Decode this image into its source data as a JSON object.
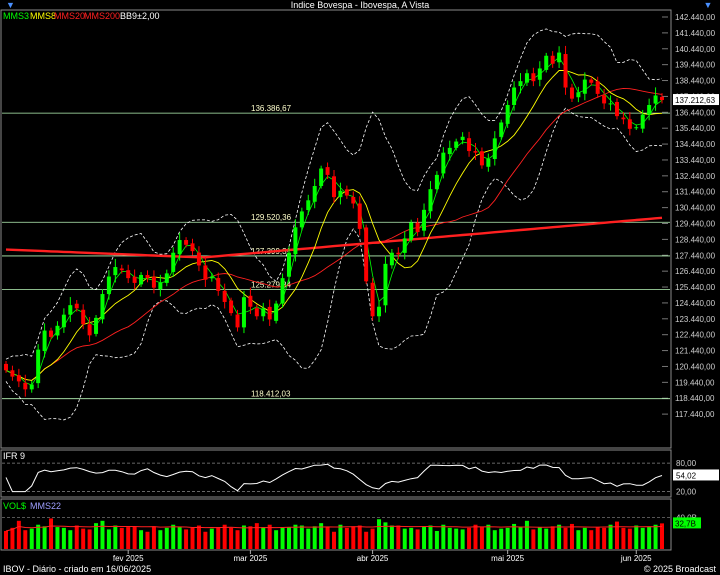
{
  "window": {
    "title": "Indice Bovespa - Ibovespa, A Vista"
  },
  "legend": [
    {
      "label": "MMS3",
      "color": "#00ff00"
    },
    {
      "label": "MMS8",
      "color": "#ffff00"
    },
    {
      "label": "MMS20",
      "color": "#ff2020"
    },
    {
      "label": "MMS200",
      "color": "#ff2020"
    },
    {
      "label": "BB9±2,00",
      "color": "#ffffff"
    }
  ],
  "footer": {
    "left": "IBOV - Diário - criado em 16/06/2025",
    "right": "© 2025 Broadcast"
  },
  "colors": {
    "up": "#00ff00",
    "down": "#ff0000",
    "ma_short": "#00ff00",
    "ma_mid": "#ffff00",
    "ma_long": "#ff2020",
    "bands": "#ffffff",
    "hline": "#b9f7b9"
  },
  "chart_data": [
    {
      "type": "candlestick",
      "title": "Indice Bovespa - Ibovespa, A Vista",
      "ylim": [
        116440,
        142440
      ],
      "yticks": [
        "142.440,00",
        "141.440,00",
        "140.440,00",
        "139.440,00",
        "138.440,00",
        "137.440,00",
        "136.440,00",
        "135.440,00",
        "134.440,00",
        "133.440,00",
        "132.440,00",
        "131.440,00",
        "130.440,00",
        "129.440,00",
        "128.440,00",
        "127.440,00",
        "126.440,00",
        "125.440,00",
        "124.440,00",
        "123.440,00",
        "122.440,00",
        "121.440,00",
        "120.440,00",
        "119.440,00",
        "118.440,00",
        "117.440,00"
      ],
      "last_price": 137212.63,
      "last_price_label": "137.212,63",
      "x_labels": [
        {
          "label": "fev 2025",
          "index": 19
        },
        {
          "label": "mar 2025",
          "index": 38
        },
        {
          "label": "abr 2025",
          "index": 57
        },
        {
          "label": "mai 2025",
          "index": 78
        },
        {
          "label": "jun 2025",
          "index": 98
        }
      ],
      "hlines": [
        {
          "value": 136386.67,
          "label": "136.386,67"
        },
        {
          "value": 129520.36,
          "label": "129.520,36"
        },
        {
          "value": 127399.31,
          "label": "127.399,31"
        },
        {
          "value": 125279.34,
          "label": "125.279,34"
        },
        {
          "value": 118412.03,
          "label": "118.412,03"
        }
      ],
      "close": [
        120200,
        119800,
        119500,
        119000,
        119300,
        121500,
        122700,
        122300,
        123000,
        123700,
        124300,
        124100,
        123100,
        122400,
        123500,
        125000,
        126100,
        126700,
        126500,
        126000,
        125700,
        126200,
        126000,
        125400,
        125700,
        126300,
        127600,
        128400,
        128100,
        127700,
        126800,
        125900,
        126100,
        125200,
        124500,
        123800,
        122900,
        124800,
        124200,
        123600,
        124100,
        123400,
        124400,
        126000,
        127600,
        129200,
        130200,
        130900,
        131800,
        132900,
        132500,
        131100,
        131500,
        131200,
        130700,
        129100,
        125800,
        123600,
        124200,
        126900,
        127600,
        127500,
        128500,
        129500,
        128900,
        130300,
        131600,
        132500,
        133900,
        134200,
        134600,
        134900,
        134000,
        133900,
        133100,
        133500,
        134800,
        135800,
        136900,
        138000,
        138400,
        138900,
        138400,
        139200,
        140000,
        139500,
        140200,
        138000,
        137300,
        137700,
        138500,
        138300,
        137600,
        137000,
        137000,
        136200,
        136000,
        135400,
        135500,
        136300,
        136900,
        137500,
        137212.63
      ],
      "ma_short": "MMS3",
      "ma_mid": "MMS8",
      "ma_long": "MMS20",
      "ma_200": {
        "name": "MMS200",
        "start": 127800,
        "low": 127300,
        "end": 129800
      },
      "bollinger": {
        "name": "BB9±2,00",
        "period": 9,
        "k": 2
      }
    },
    {
      "type": "line",
      "title": "IFR 9",
      "ylim": [
        15,
        95
      ],
      "yticks": [
        "80,00",
        "20,00"
      ],
      "levels": [
        80,
        20
      ],
      "last_value": 54.02,
      "last_value_label": "54,02"
    },
    {
      "type": "bar",
      "title": "VOL$",
      "series_name": "MMS22",
      "unit": "B",
      "ytick": "40,0B",
      "ylim": [
        0,
        60
      ],
      "last_value_label": "32,7B",
      "values": [
        23,
        27,
        36,
        24,
        26,
        31,
        29,
        39,
        28,
        27,
        24,
        30,
        26,
        25,
        33,
        36,
        25,
        30,
        27,
        28,
        29,
        24,
        22,
        29,
        24,
        27,
        31,
        28,
        25,
        27,
        30,
        22,
        26,
        28,
        31,
        27,
        24,
        30,
        29,
        33,
        28,
        31,
        24,
        27,
        28,
        31,
        30,
        26,
        29,
        33,
        28,
        22,
        31,
        27,
        29,
        30,
        22,
        26,
        38,
        34,
        30,
        30,
        26,
        27,
        25,
        29,
        30,
        23,
        31,
        27,
        26,
        25,
        27,
        31,
        28,
        31,
        24,
        26,
        27,
        32,
        28,
        36,
        25,
        28,
        26,
        29,
        31,
        27,
        32,
        24,
        27,
        24,
        28,
        27,
        31,
        35,
        27,
        26,
        30,
        27,
        28,
        31,
        32.7
      ]
    }
  ]
}
